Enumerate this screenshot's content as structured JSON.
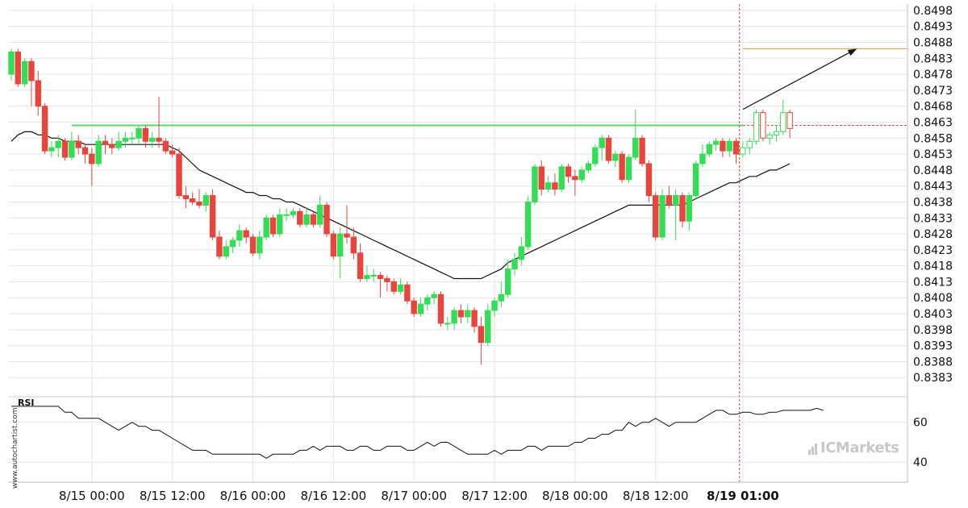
{
  "chart_data": {
    "type": "candlestick",
    "y_ticks": [
      "0.8498",
      "0.8493",
      "0.8488",
      "0.8483",
      "0.8478",
      "0.8473",
      "0.8468",
      "0.8463",
      "0.8458",
      "0.8453",
      "0.8448",
      "0.8443",
      "0.8438",
      "0.8433",
      "0.8428",
      "0.8423",
      "0.8418",
      "0.8413",
      "0.8408",
      "0.8403",
      "0.8398",
      "0.8393",
      "0.8388",
      "0.8383"
    ],
    "ylim": [
      0.8378,
      0.85
    ],
    "x_ticks": [
      {
        "label": "8/15 00:00",
        "index": 12
      },
      {
        "label": "8/15 12:00",
        "index": 24
      },
      {
        "label": "8/16 00:00",
        "index": 36
      },
      {
        "label": "8/16 12:00",
        "index": 48
      },
      {
        "label": "8/17 00:00",
        "index": 60
      },
      {
        "label": "8/17 12:00",
        "index": 72
      },
      {
        "label": "8/18 00:00",
        "index": 84
      },
      {
        "label": "8/18 12:00",
        "index": 96
      },
      {
        "label": "8/19 01:00",
        "index": 109,
        "bold": true
      }
    ],
    "candles": [
      [
        0.8478,
        0.8485,
        0.8486,
        0.8476
      ],
      [
        0.8485,
        0.8475,
        0.8486,
        0.8474
      ],
      [
        0.8475,
        0.8482,
        0.8483,
        0.8474
      ],
      [
        0.8482,
        0.8476,
        0.8483,
        0.8468
      ],
      [
        0.8476,
        0.8468,
        0.8479,
        0.8465
      ],
      [
        0.8468,
        0.8454,
        0.8469,
        0.8453
      ],
      [
        0.8454,
        0.8455,
        0.8457,
        0.8452
      ],
      [
        0.8455,
        0.8457,
        0.8459,
        0.8452
      ],
      [
        0.8457,
        0.8452,
        0.8458,
        0.8451
      ],
      [
        0.8452,
        0.8457,
        0.846,
        0.8451
      ],
      [
        0.8457,
        0.8455,
        0.8459,
        0.8453
      ],
      [
        0.8455,
        0.8453,
        0.8456,
        0.845
      ],
      [
        0.8453,
        0.845,
        0.8455,
        0.8443
      ],
      [
        0.845,
        0.8457,
        0.8459,
        0.8449
      ],
      [
        0.8457,
        0.8456,
        0.8459,
        0.8453
      ],
      [
        0.8456,
        0.8455,
        0.8458,
        0.8453
      ],
      [
        0.8455,
        0.8457,
        0.846,
        0.8454
      ],
      [
        0.8457,
        0.8458,
        0.846,
        0.8455
      ],
      [
        0.8458,
        0.8458,
        0.846,
        0.8456
      ],
      [
        0.8458,
        0.8461,
        0.8462,
        0.8456
      ],
      [
        0.8461,
        0.8457,
        0.8462,
        0.8455
      ],
      [
        0.8457,
        0.8458,
        0.846,
        0.8455
      ],
      [
        0.8458,
        0.8457,
        0.8471,
        0.8455
      ],
      [
        0.8457,
        0.8454,
        0.8458,
        0.8453
      ],
      [
        0.8454,
        0.8453,
        0.8456,
        0.8452
      ],
      [
        0.8453,
        0.844,
        0.8455,
        0.8439
      ],
      [
        0.844,
        0.8439,
        0.8443,
        0.8436
      ],
      [
        0.8439,
        0.8438,
        0.8441,
        0.8437
      ],
      [
        0.8438,
        0.8437,
        0.8442,
        0.8436
      ],
      [
        0.8437,
        0.844,
        0.8441,
        0.8435
      ],
      [
        0.844,
        0.8427,
        0.8442,
        0.8426
      ],
      [
        0.8427,
        0.8421,
        0.8429,
        0.842
      ],
      [
        0.8421,
        0.8424,
        0.8426,
        0.842
      ],
      [
        0.8424,
        0.8426,
        0.8427,
        0.8422
      ],
      [
        0.8426,
        0.8429,
        0.8431,
        0.8424
      ],
      [
        0.8429,
        0.8427,
        0.843,
        0.8425
      ],
      [
        0.8427,
        0.8422,
        0.8428,
        0.8421
      ],
      [
        0.8422,
        0.8427,
        0.8429,
        0.842
      ],
      [
        0.8427,
        0.8433,
        0.8434,
        0.8426
      ],
      [
        0.8433,
        0.8428,
        0.8434,
        0.8427
      ],
      [
        0.8428,
        0.8434,
        0.8436,
        0.8427
      ],
      [
        0.8434,
        0.8434,
        0.8436,
        0.8432
      ],
      [
        0.8434,
        0.8435,
        0.8436,
        0.8433
      ],
      [
        0.8435,
        0.8431,
        0.8436,
        0.843
      ],
      [
        0.8431,
        0.8434,
        0.8436,
        0.843
      ],
      [
        0.8434,
        0.8431,
        0.8435,
        0.843
      ],
      [
        0.8431,
        0.8437,
        0.844,
        0.843
      ],
      [
        0.8437,
        0.8428,
        0.8438,
        0.8427
      ],
      [
        0.8428,
        0.8421,
        0.8429,
        0.842
      ],
      [
        0.8421,
        0.8428,
        0.843,
        0.8414
      ],
      [
        0.8428,
        0.8427,
        0.8437,
        0.8425
      ],
      [
        0.8427,
        0.8422,
        0.843,
        0.842
      ],
      [
        0.8422,
        0.8414,
        0.8425,
        0.8413
      ],
      [
        0.8414,
        0.8415,
        0.8418,
        0.8413
      ],
      [
        0.8415,
        0.8415,
        0.8417,
        0.8413
      ],
      [
        0.8415,
        0.8414,
        0.8416,
        0.8408
      ],
      [
        0.8414,
        0.8413,
        0.8415,
        0.841
      ],
      [
        0.8413,
        0.841,
        0.8414,
        0.8409
      ],
      [
        0.841,
        0.8412,
        0.8414,
        0.8409
      ],
      [
        0.8412,
        0.8407,
        0.8413,
        0.8406
      ],
      [
        0.8407,
        0.8403,
        0.8408,
        0.8402
      ],
      [
        0.8403,
        0.8406,
        0.8408,
        0.8402
      ],
      [
        0.8406,
        0.8408,
        0.8409,
        0.8404
      ],
      [
        0.8408,
        0.8409,
        0.841,
        0.8406
      ],
      [
        0.8409,
        0.84,
        0.841,
        0.8399
      ],
      [
        0.84,
        0.84,
        0.8402,
        0.8398
      ],
      [
        0.84,
        0.8404,
        0.8405,
        0.8398
      ],
      [
        0.8404,
        0.8402,
        0.8406,
        0.84
      ],
      [
        0.8402,
        0.8404,
        0.8406,
        0.84
      ],
      [
        0.8404,
        0.8399,
        0.8405,
        0.8397
      ],
      [
        0.8399,
        0.8394,
        0.8402,
        0.8387
      ],
      [
        0.8394,
        0.8404,
        0.8406,
        0.8393
      ],
      [
        0.8404,
        0.8407,
        0.8408,
        0.8402
      ],
      [
        0.8407,
        0.8409,
        0.8413,
        0.8405
      ],
      [
        0.8409,
        0.8417,
        0.842,
        0.8408
      ],
      [
        0.8417,
        0.842,
        0.8422,
        0.8415
      ],
      [
        0.842,
        0.8424,
        0.8427,
        0.8418
      ],
      [
        0.8424,
        0.8438,
        0.844,
        0.8423
      ],
      [
        0.8438,
        0.8449,
        0.845,
        0.8437
      ],
      [
        0.8449,
        0.8442,
        0.8451,
        0.844
      ],
      [
        0.8442,
        0.8444,
        0.8446,
        0.8441
      ],
      [
        0.8444,
        0.8442,
        0.8447,
        0.844
      ],
      [
        0.8442,
        0.8449,
        0.845,
        0.8441
      ],
      [
        0.8449,
        0.8446,
        0.845,
        0.8444
      ],
      [
        0.8446,
        0.8445,
        0.8448,
        0.844
      ],
      [
        0.8445,
        0.8448,
        0.8449,
        0.8444
      ],
      [
        0.8448,
        0.845,
        0.8451,
        0.8447
      ],
      [
        0.845,
        0.8455,
        0.8456,
        0.8449
      ],
      [
        0.8455,
        0.8458,
        0.8459,
        0.8451
      ],
      [
        0.8458,
        0.8451,
        0.8459,
        0.845
      ],
      [
        0.8451,
        0.8453,
        0.8454,
        0.8449
      ],
      [
        0.8453,
        0.8445,
        0.8454,
        0.8444
      ],
      [
        0.8445,
        0.8452,
        0.8453,
        0.8444
      ],
      [
        0.8452,
        0.8458,
        0.8467,
        0.8451
      ],
      [
        0.8458,
        0.845,
        0.8459,
        0.8449
      ],
      [
        0.845,
        0.844,
        0.8451,
        0.8438
      ],
      [
        0.844,
        0.8427,
        0.8441,
        0.8426
      ],
      [
        0.8427,
        0.844,
        0.8442,
        0.8426
      ],
      [
        0.844,
        0.8437,
        0.8443,
        0.8436
      ],
      [
        0.8437,
        0.844,
        0.8442,
        0.8426
      ],
      [
        0.844,
        0.8432,
        0.8441,
        0.843
      ],
      [
        0.8432,
        0.844,
        0.8441,
        0.8429
      ],
      [
        0.844,
        0.845,
        0.8451,
        0.8439
      ],
      [
        0.845,
        0.8453,
        0.8456,
        0.8449
      ],
      [
        0.8453,
        0.8456,
        0.8457,
        0.8452
      ],
      [
        0.8456,
        0.8457,
        0.8458,
        0.8454
      ],
      [
        0.8457,
        0.8454,
        0.8458,
        0.8452
      ],
      [
        0.8454,
        0.8457,
        0.8458,
        0.8452
      ],
      [
        0.8457,
        0.8453,
        0.8458,
        0.845
      ],
      [
        0.8453,
        0.8455,
        0.8457,
        0.8452
      ],
      [
        0.8455,
        0.8457,
        0.8458,
        0.8453
      ],
      [
        0.8457,
        0.8466,
        0.8467,
        0.8456
      ],
      [
        0.8466,
        0.8458,
        0.8467,
        0.8457
      ],
      [
        0.8458,
        0.8459,
        0.846,
        0.8456
      ],
      [
        0.8459,
        0.846,
        0.8462,
        0.8457
      ],
      [
        0.846,
        0.8466,
        0.847,
        0.8459
      ],
      [
        0.8466,
        0.8461,
        0.8467,
        0.8458
      ]
    ],
    "hollow_from_index": 109,
    "moving_average": [
      0.8457,
      0.8459,
      0.846,
      0.846,
      0.8459,
      0.8459,
      0.8458,
      0.8458,
      0.8457,
      0.8457,
      0.8457,
      0.8456,
      0.8456,
      0.8456,
      0.8456,
      0.8456,
      0.8456,
      0.8456,
      0.8456,
      0.8456,
      0.8456,
      0.8456,
      0.8456,
      0.8456,
      0.8455,
      0.8454,
      0.8452,
      0.845,
      0.8448,
      0.8447,
      0.8446,
      0.8445,
      0.8444,
      0.8443,
      0.8442,
      0.8441,
      0.8441,
      0.844,
      0.844,
      0.8439,
      0.8439,
      0.8438,
      0.8438,
      0.8437,
      0.8436,
      0.8435,
      0.8434,
      0.8433,
      0.8432,
      0.8431,
      0.843,
      0.8429,
      0.8428,
      0.8427,
      0.8426,
      0.8425,
      0.8424,
      0.8423,
      0.8422,
      0.8421,
      0.842,
      0.8419,
      0.8418,
      0.8417,
      0.8416,
      0.8415,
      0.8414,
      0.8414,
      0.8414,
      0.8414,
      0.8414,
      0.8415,
      0.8416,
      0.8417,
      0.8419,
      0.842,
      0.8421,
      0.8422,
      0.8423,
      0.8424,
      0.8425,
      0.8426,
      0.8427,
      0.8428,
      0.8429,
      0.843,
      0.8431,
      0.8432,
      0.8433,
      0.8434,
      0.8435,
      0.8436,
      0.8437,
      0.8437,
      0.8437,
      0.8437,
      0.8437,
      0.8437,
      0.8437,
      0.8437,
      0.8437,
      0.8438,
      0.8439,
      0.844,
      0.8441,
      0.8442,
      0.8443,
      0.8444,
      0.8444,
      0.8445,
      0.8446,
      0.8446,
      0.8447,
      0.8448,
      0.8448,
      0.8449,
      0.845
    ],
    "support_level": 0.8462,
    "support_start_index": 9,
    "target_level": 0.8486,
    "forecast_arrow": {
      "from_index": 109,
      "from_value": 0.8467,
      "to_index": 126,
      "to_value": 0.8486
    },
    "current_price": 0.8462,
    "vline_index": 109,
    "rsi": {
      "label": "RSI",
      "y_ticks": [
        "60",
        "40"
      ],
      "ylim": [
        30,
        72
      ],
      "values": [
        68,
        68,
        68,
        68,
        68,
        68,
        68,
        68,
        65,
        65,
        62,
        62,
        62,
        62,
        60,
        58,
        56,
        58,
        60,
        58,
        58,
        56,
        56,
        54,
        52,
        50,
        48,
        46,
        46,
        46,
        44,
        44,
        44,
        44,
        44,
        44,
        44,
        44,
        42,
        44,
        44,
        44,
        44,
        46,
        46,
        48,
        46,
        48,
        48,
        48,
        46,
        46,
        48,
        48,
        46,
        46,
        48,
        48,
        48,
        46,
        46,
        48,
        50,
        48,
        50,
        50,
        48,
        46,
        44,
        44,
        44,
        44,
        46,
        44,
        46,
        46,
        46,
        48,
        48,
        46,
        48,
        48,
        48,
        48,
        50,
        50,
        52,
        52,
        54,
        54,
        56,
        56,
        60,
        58,
        60,
        60,
        62,
        60,
        58,
        60,
        60,
        60,
        60,
        62,
        64,
        66,
        66,
        64,
        64,
        65,
        65,
        64,
        64,
        65,
        65,
        66,
        66,
        66,
        66,
        66,
        67,
        66
      ]
    }
  },
  "watermark_text": "www.autochartist.com",
  "brand_text": "ICMarkets",
  "colors": {
    "bull": "#33dd55",
    "bear": "#e8453c",
    "support": "#55dd66",
    "target": "#e8a060",
    "line": "#111111",
    "grid": "#e4e4e4",
    "current_price": "#e8453c",
    "vline": "#c05050"
  }
}
